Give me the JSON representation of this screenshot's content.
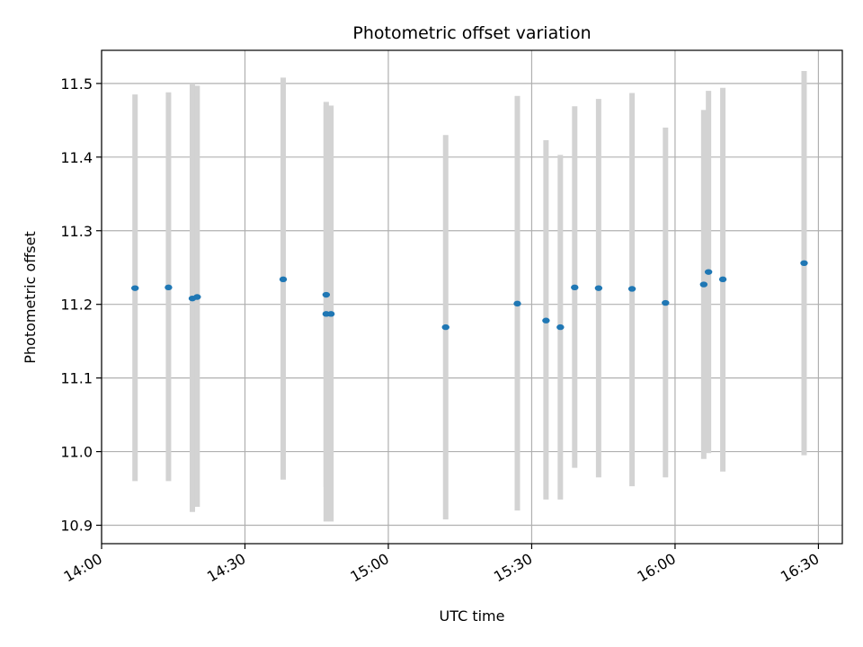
{
  "chart_data": {
    "type": "scatter",
    "title": "Photometric offset variation",
    "xlabel": "UTC time",
    "ylabel": "Photometric offset",
    "x_ticks": [
      "14:00",
      "14:30",
      "15:00",
      "15:30",
      "16:00",
      "16:30"
    ],
    "y_ticks": [
      "10.9",
      "11.0",
      "11.1",
      "11.2",
      "11.3",
      "11.4",
      "11.5"
    ],
    "xlim": [
      "14:00",
      "16:35"
    ],
    "ylim": [
      10.875,
      11.545
    ],
    "grid": true,
    "colors": {
      "point": "#1f77b4",
      "errorbar": "#d3d3d3",
      "grid": "#b0b0b0"
    },
    "points": [
      {
        "x": "14:07",
        "y": 11.222,
        "ylow": 10.96,
        "yhigh": 11.485
      },
      {
        "x": "14:14",
        "y": 11.223,
        "ylow": 10.96,
        "yhigh": 11.488
      },
      {
        "x": "14:19",
        "y": 11.208,
        "ylow": 10.918,
        "yhigh": 11.5
      },
      {
        "x": "14:20",
        "y": 11.21,
        "ylow": 10.925,
        "yhigh": 11.497
      },
      {
        "x": "14:38",
        "y": 11.234,
        "ylow": 10.962,
        "yhigh": 11.508
      },
      {
        "x": "14:47",
        "y": 11.213,
        "ylow": 10.952,
        "yhigh": 11.475
      },
      {
        "x": "14:47",
        "y": 11.187,
        "ylow": 10.905,
        "yhigh": 11.47
      },
      {
        "x": "14:48",
        "y": 11.187,
        "ylow": 10.905,
        "yhigh": 11.47
      },
      {
        "x": "15:12",
        "y": 11.169,
        "ylow": 10.908,
        "yhigh": 11.43
      },
      {
        "x": "15:27",
        "y": 11.201,
        "ylow": 10.92,
        "yhigh": 11.483
      },
      {
        "x": "15:33",
        "y": 11.178,
        "ylow": 10.935,
        "yhigh": 11.423
      },
      {
        "x": "15:36",
        "y": 11.169,
        "ylow": 10.935,
        "yhigh": 11.403
      },
      {
        "x": "15:39",
        "y": 11.223,
        "ylow": 10.978,
        "yhigh": 11.469
      },
      {
        "x": "15:44",
        "y": 11.222,
        "ylow": 10.965,
        "yhigh": 11.479
      },
      {
        "x": "15:51",
        "y": 11.221,
        "ylow": 10.953,
        "yhigh": 11.487
      },
      {
        "x": "15:58",
        "y": 11.202,
        "ylow": 10.965,
        "yhigh": 11.44
      },
      {
        "x": "16:06",
        "y": 11.227,
        "ylow": 10.99,
        "yhigh": 11.464
      },
      {
        "x": "16:07",
        "y": 11.244,
        "ylow": 10.998,
        "yhigh": 11.49
      },
      {
        "x": "16:10",
        "y": 11.234,
        "ylow": 10.973,
        "yhigh": 11.494
      },
      {
        "x": "16:27",
        "y": 11.256,
        "ylow": 10.995,
        "yhigh": 11.517
      }
    ]
  }
}
